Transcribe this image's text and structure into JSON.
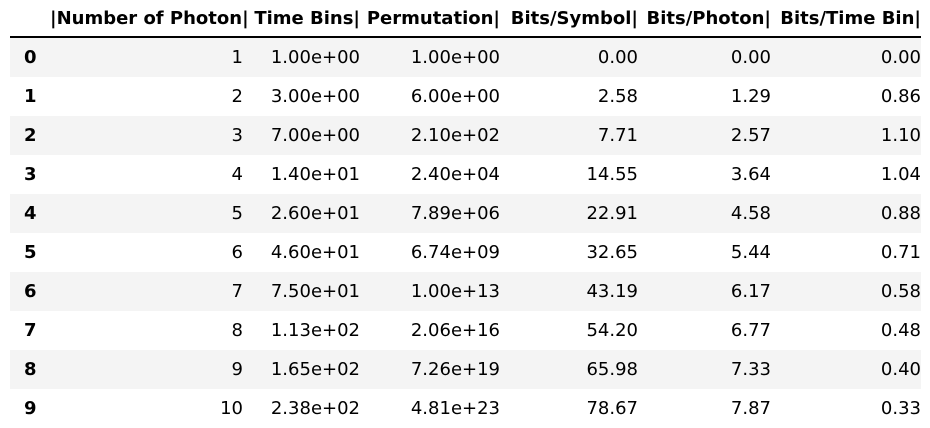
{
  "table": {
    "headers": [
      "",
      "|Number of Photon|",
      "Time Bins|",
      "Permutation|",
      "Bits/Symbol|",
      "Bits/Photon|",
      "Bits/Time Bin|"
    ],
    "rows": [
      [
        "0",
        "1",
        "1.00e+00",
        "1.00e+00",
        "0.00",
        "0.00",
        "0.00"
      ],
      [
        "1",
        "2",
        "3.00e+00",
        "6.00e+00",
        "2.58",
        "1.29",
        "0.86"
      ],
      [
        "2",
        "3",
        "7.00e+00",
        "2.10e+02",
        "7.71",
        "2.57",
        "1.10"
      ],
      [
        "3",
        "4",
        "1.40e+01",
        "2.40e+04",
        "14.55",
        "3.64",
        "1.04"
      ],
      [
        "4",
        "5",
        "2.60e+01",
        "7.89e+06",
        "22.91",
        "4.58",
        "0.88"
      ],
      [
        "5",
        "6",
        "4.60e+01",
        "6.74e+09",
        "32.65",
        "5.44",
        "0.71"
      ],
      [
        "6",
        "7",
        "7.50e+01",
        "1.00e+13",
        "43.19",
        "6.17",
        "0.58"
      ],
      [
        "7",
        "8",
        "1.13e+02",
        "2.06e+16",
        "54.20",
        "6.77",
        "0.48"
      ],
      [
        "8",
        "9",
        "1.65e+02",
        "7.26e+19",
        "65.98",
        "7.33",
        "0.40"
      ],
      [
        "9",
        "10",
        "2.38e+02",
        "4.81e+23",
        "78.67",
        "7.87",
        "0.33"
      ]
    ]
  }
}
